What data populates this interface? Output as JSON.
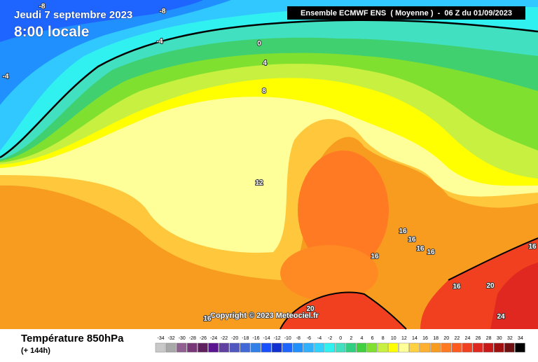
{
  "header": {
    "date": "Jeudi 7 septembre 2023",
    "time": "8:00 locale",
    "run": "Ensemble ECMWF ENS  ( Moyenne )  -  06 Z du 01/09/2023"
  },
  "copyright": "Copyright © 2023 Meteociel.fr",
  "contour_labels": [
    "-8",
    "-8",
    "-4",
    "-4",
    "0",
    "4",
    "8",
    "12",
    "16",
    "16",
    "16",
    "16",
    "16",
    "16",
    "16",
    "20",
    "20",
    "24",
    "16"
  ],
  "legend": {
    "title": "Température 850hPa",
    "lead": "(+ 144h)",
    "scale": [
      -34,
      -32,
      -30,
      -28,
      -26,
      -24,
      -22,
      -20,
      -18,
      -16,
      -14,
      -12,
      -10,
      -8,
      -6,
      -4,
      -2,
      0,
      2,
      4,
      6,
      8,
      10,
      12,
      14,
      16,
      18,
      20,
      22,
      24,
      26,
      28,
      30,
      32,
      34
    ],
    "colors": [
      "#c8c8c8",
      "#a8a8a8",
      "#906090",
      "#783878",
      "#602060",
      "#5a1490",
      "#6040a0",
      "#5058c0",
      "#4068d8",
      "#3080e8",
      "#1850ff",
      "#1030d0",
      "#1e64ff",
      "#2090ff",
      "#30b0ff",
      "#30d0ff",
      "#30f0f0",
      "#40e0c0",
      "#30d080",
      "#40d040",
      "#80e030",
      "#c8f040",
      "#ffff00",
      "#ffff9a",
      "#ffd040",
      "#ffb030",
      "#f89c20",
      "#ff7a22",
      "#ff5a20",
      "#f04020",
      "#e02820",
      "#c81818",
      "#a01010",
      "#701010",
      "#000000"
    ]
  }
}
